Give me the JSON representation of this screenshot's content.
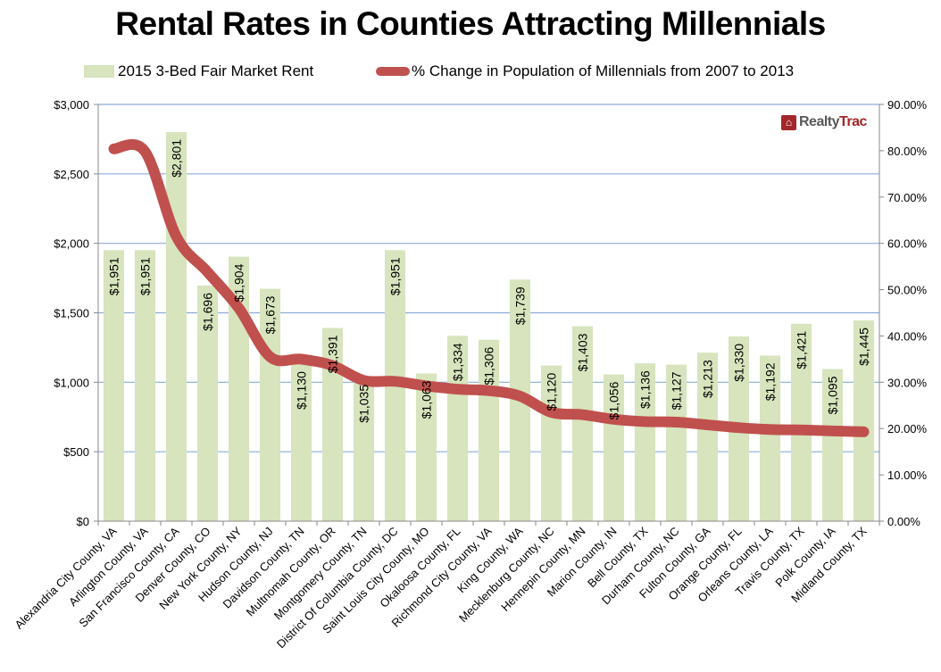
{
  "chart_data": {
    "type": "bar",
    "title": "Rental Rates in Counties Attracting Millennials",
    "xlabel": "",
    "ylabel": "",
    "y2label": "",
    "legend_position": "top",
    "grid": true,
    "watermark": {
      "realty": "Realty",
      "trac": "Trac",
      "icon": "house-icon"
    },
    "ylim": [
      0,
      3000
    ],
    "y_ticks": [
      "$0",
      "$500",
      "$1,000",
      "$1,500",
      "$2,000",
      "$2,500",
      "$3,000"
    ],
    "y_tick_values": [
      0,
      500,
      1000,
      1500,
      2000,
      2500,
      3000
    ],
    "y2lim": [
      0,
      90
    ],
    "y2_ticks": [
      "0.00%",
      "10.00%",
      "20.00%",
      "30.00%",
      "40.00%",
      "50.00%",
      "60.00%",
      "70.00%",
      "80.00%",
      "90.00%"
    ],
    "y2_tick_values": [
      0,
      10,
      20,
      30,
      40,
      50,
      60,
      70,
      80,
      90
    ],
    "categories": [
      "Alexandria City County, VA",
      "Arlington County, VA",
      "San Francisco County, CA",
      "Denver County, CO",
      "New York County, NY",
      "Hudson County, NJ",
      "Davidson County, TN",
      "Multnomah County, OR",
      "Montgomery County, TN",
      "District Of Columbia County, DC",
      "Saint Louis City County, MO",
      "Okaloosa County, FL",
      "Richmond City County, VA",
      "King County, WA",
      "Mecklenburg County, NC",
      "Hennepin County, MN",
      "Marion County, IN",
      "Bell County, TX",
      "Durham County, NC",
      "Fulton County, GA",
      "Orange County, FL",
      "Orleans County, LA",
      "Travis County, TX",
      "Polk County, IA",
      "Midland County, TX"
    ],
    "series": [
      {
        "name": "2015 3-Bed Fair Market Rent",
        "type": "bar",
        "axis": "left",
        "color": "#d7e4bd",
        "values": [
          1951,
          1951,
          2801,
          1696,
          1904,
          1673,
          1130,
          1391,
          1035,
          1951,
          1063,
          1334,
          1306,
          1739,
          1120,
          1403,
          1056,
          1136,
          1127,
          1213,
          1330,
          1192,
          1421,
          1095,
          1445
        ],
        "labels": [
          "$1,951",
          "$1,951",
          "$2,801",
          "$1,696",
          "$1,904",
          "$1,673",
          "$1,130",
          "$1,391",
          "$1,035",
          "$1,951",
          "$1,063",
          "$1,334",
          "$1,306",
          "$1,739",
          "$1,120",
          "$1,403",
          "$1,056",
          "$1,136",
          "$1,127",
          "$1,213",
          "$1,330",
          "$1,192",
          "$1,421",
          "$1,095",
          "$1,445"
        ]
      },
      {
        "name": "% Change in Population of Millennials from 2007 to 2013",
        "type": "line",
        "axis": "right",
        "color": "#c0504d",
        "values": [
          80.4,
          79.8,
          61.5,
          53.8,
          46.0,
          35.5,
          35.0,
          33.6,
          30.4,
          30.2,
          29.2,
          28.5,
          28.2,
          27.0,
          23.5,
          23.0,
          22.0,
          21.5,
          21.4,
          20.8,
          20.2,
          19.8,
          19.7,
          19.5,
          19.3
        ]
      }
    ]
  }
}
